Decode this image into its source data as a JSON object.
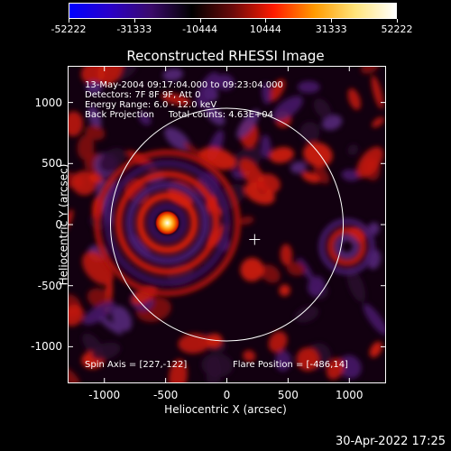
{
  "colorbar": {
    "labels": [
      "-52222",
      "-31333",
      "-10444",
      "10444",
      "31333",
      "52222"
    ],
    "colors": [
      "#0000ff",
      "#2a00c8",
      "#3a0a6a",
      "#000000",
      "#6a0a0a",
      "#ff1a00",
      "#ff9a00",
      "#ffe47a",
      "#ffffff"
    ]
  },
  "title": "Reconstructed RHESSI Image",
  "info": {
    "line1": "13-May-2004 09:17:04.000 to 09:23:04.000",
    "line2": "Detectors: 7F 8F 9F, Att 0",
    "line3": "Energy Range: 6.0 - 12.0 keV",
    "line4": "Back Projection     Total counts: 4.63E+04"
  },
  "spin_axis": "Spin Axis = [227,-122]",
  "flare_position": "Flare Position = [-486,14]",
  "axes": {
    "xlabel": "Heliocentric X (arcsec)",
    "ylabel": "Heliocentric Y (arcsec)",
    "xticks": [
      "-1000",
      "-500",
      "0",
      "500",
      "1000"
    ],
    "yticks": [
      "1000",
      "500",
      "0",
      "-500",
      "-1000"
    ]
  },
  "timestamp": "30-Apr-2022 17:25",
  "chart_data": {
    "type": "heatmap",
    "title": "Reconstructed RHESSI Image",
    "xlabel": "Heliocentric X (arcsec)",
    "ylabel": "Heliocentric Y (arcsec)",
    "xlim": [
      -1300,
      1300
    ],
    "ylim": [
      -1300,
      1300
    ],
    "colorbar_range": [
      -52222,
      52222
    ],
    "source_peak": {
      "x": -486,
      "y": 14
    },
    "spin_axis": {
      "x": 227,
      "y": -122
    },
    "solar_limb_radius": 950
  }
}
